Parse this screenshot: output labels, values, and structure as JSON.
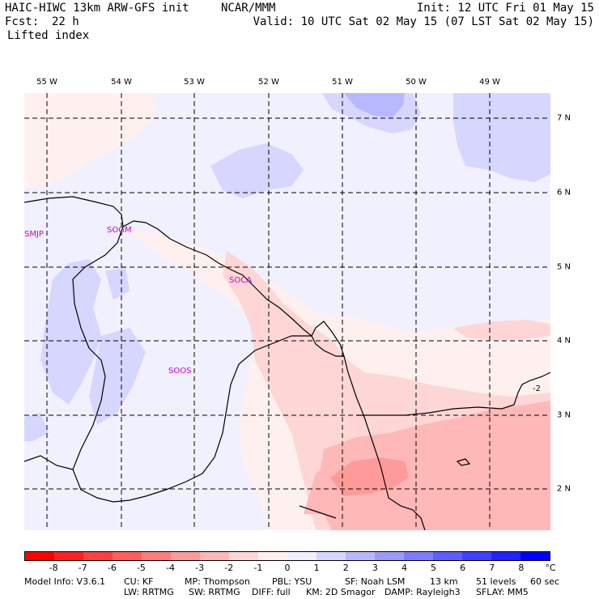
{
  "header": {
    "model": "HAIC-HIWC 13km ARW-GFS init",
    "org": "NCAR/MMM",
    "init": "Init: 12 UTC Fri 01 May 15",
    "fcst_label": "Fcst:",
    "fcst_value": "22 h",
    "valid": "Valid: 10 UTC Sat 02 May 15 (07 LST Sat 02 May 15)",
    "field": "Lifted index"
  },
  "lon_labels": [
    "55 W",
    "54 W",
    "53 W",
    "52 W",
    "51 W",
    "50 W",
    "49 W"
  ],
  "lat_labels": [
    "7 N",
    "6 N",
    "5 N",
    "4 N",
    "3 N",
    "2 N"
  ],
  "stations": [
    {
      "id": "SMJP"
    },
    {
      "id": "SOGM"
    },
    {
      "id": "SOCA"
    },
    {
      "id": "SOOS"
    }
  ],
  "contour_label": "-2",
  "colorbar": {
    "unit": "°C",
    "labels": [
      "-8",
      "-7",
      "-6",
      "-5",
      "-4",
      "-3",
      "-2",
      "-1",
      "0",
      "1",
      "2",
      "3",
      "4",
      "5",
      "6",
      "7",
      "8"
    ],
    "colors": [
      "#ff0000",
      "#ff2222",
      "#ff4040",
      "#ff5e5e",
      "#ff7c7c",
      "#ff9a9a",
      "#ffb8b8",
      "#ffd6d6",
      "#fff0f0",
      "#f0f0ff",
      "#d6d6ff",
      "#b8b8ff",
      "#9a9aff",
      "#7c7cff",
      "#5e5eff",
      "#4040ff",
      "#2222ff",
      "#0000ff"
    ]
  },
  "footer": {
    "line1": [
      "Model Info: V3.6.1",
      "CU: KF",
      "MP: Thompson",
      "PBL: YSU",
      "SF: Noah LSM",
      "13 km",
      "51 levels",
      "60 sec"
    ],
    "line2": [
      "LW: RRTMG",
      "SW: RRTMG",
      "DIFF: full",
      "KM: 2D Smagor",
      "DAMP: Rayleigh3",
      "SFLAY: MM5"
    ]
  }
}
